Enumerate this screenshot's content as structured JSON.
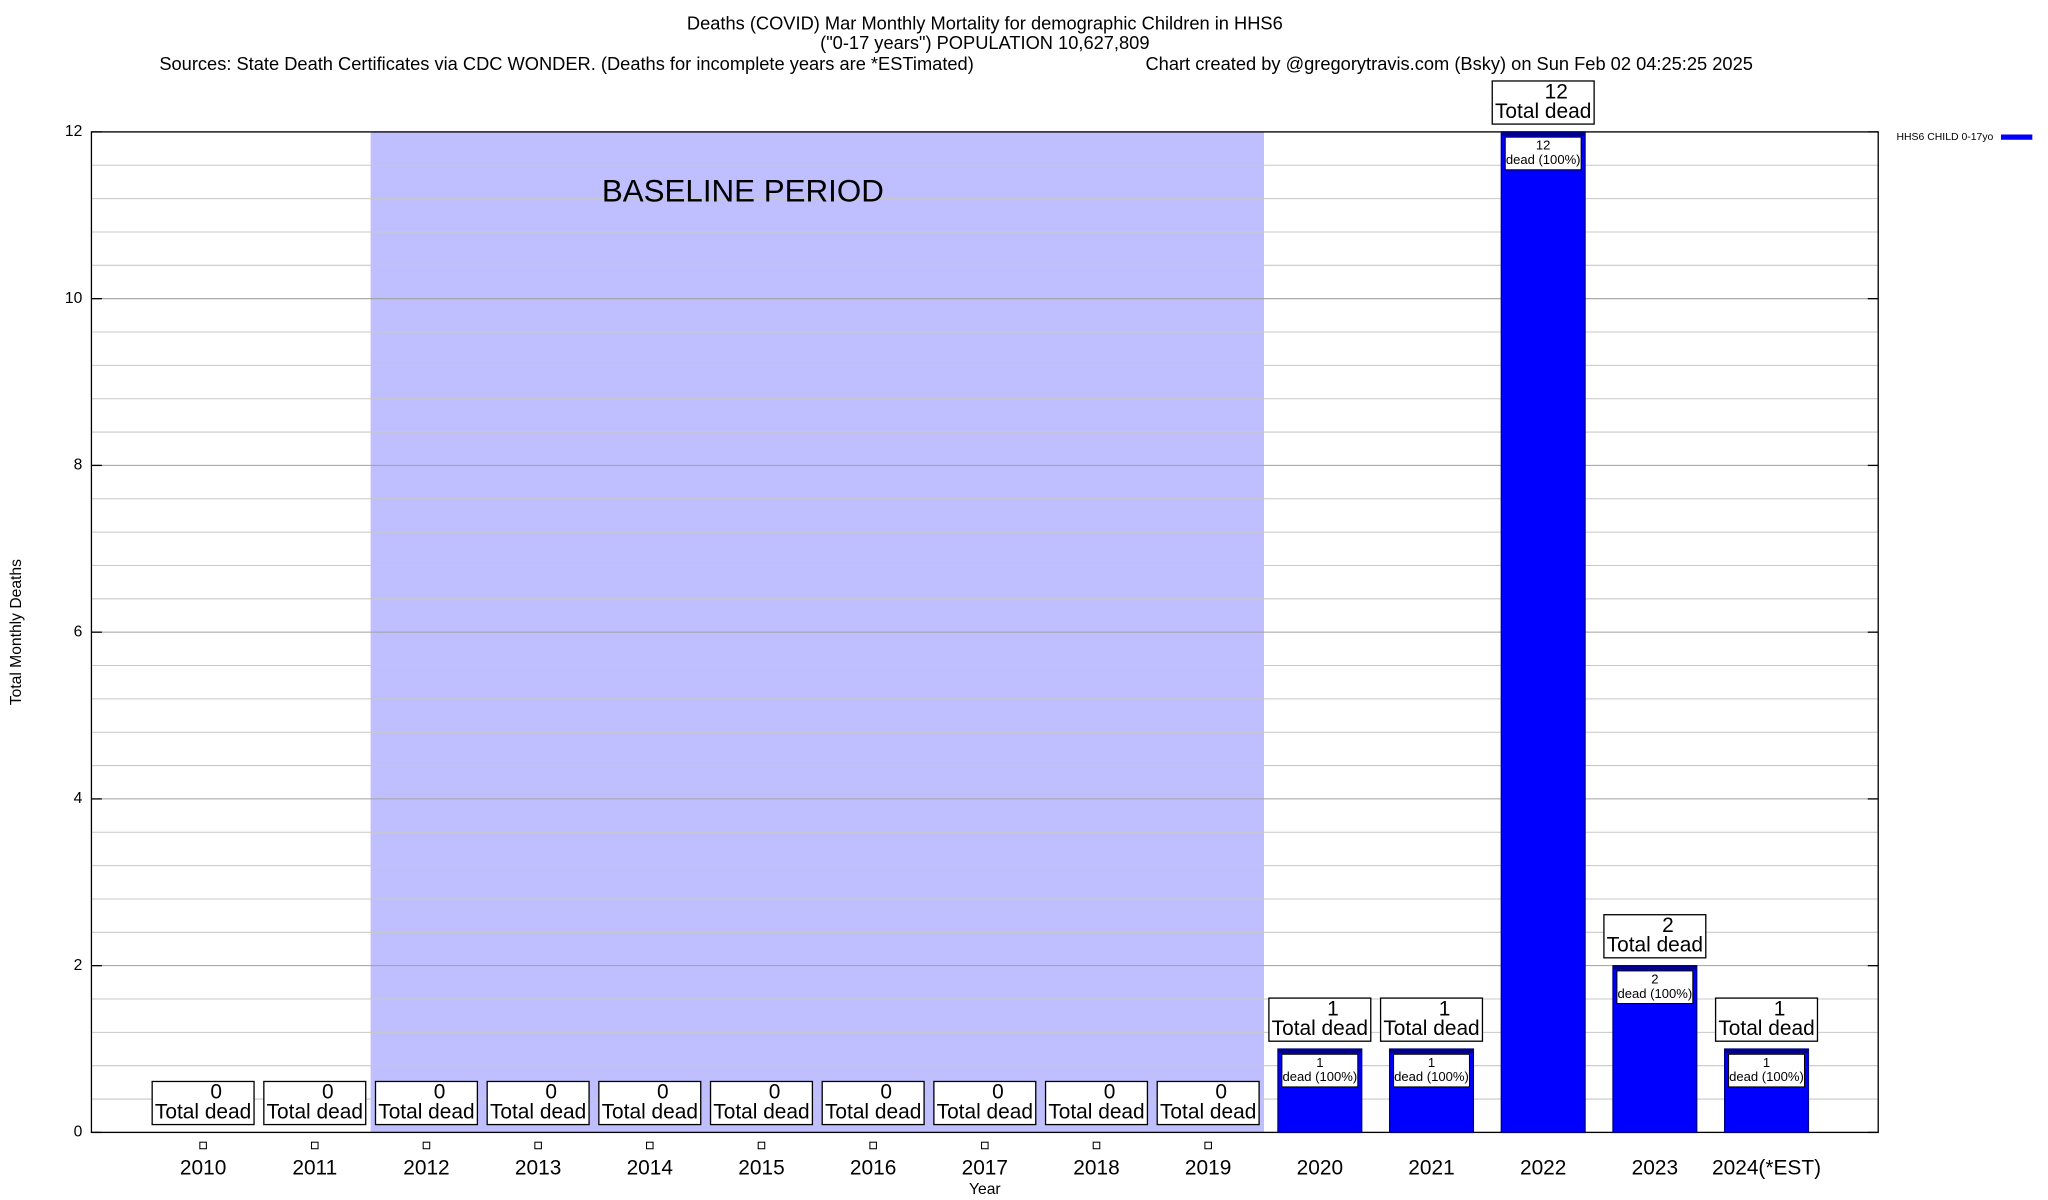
{
  "chart_data": {
    "type": "bar",
    "title": "Deaths (COVID) Mar Monthly Mortality for demographic Children in HHS6",
    "subtitle": "(\"0-17 years\") POPULATION 10,627,809",
    "source": "Sources: State Death Certificates via CDC WONDER. (Deaths for incomplete years are *ESTimated)",
    "credit": "Chart created by @gregorytravis.com (Bsky) on Sun Feb 02 04:25:25 2025",
    "x_label": "Year",
    "y_label": "Total Monthly Deaths",
    "categories": [
      "2010",
      "2011",
      "2012",
      "2013",
      "2014",
      "2015",
      "2016",
      "2017",
      "2018",
      "2019",
      "2020",
      "2021",
      "2022",
      "2023",
      "2024(*EST)"
    ],
    "series": [
      {
        "name": "HHS6 CHILD 0-17yo",
        "color": "#0000ff",
        "values": [
          0,
          0,
          0,
          0,
          0,
          0,
          0,
          0,
          0,
          0,
          1,
          1,
          12,
          2,
          1
        ]
      }
    ],
    "total_label": "Total dead",
    "bar_label": "dead (100%)",
    "baseline": {
      "label": "BASELINE PERIOD",
      "from": "2012",
      "to": "2019",
      "color": "#bfbfff"
    },
    "ylim": [
      0,
      12
    ],
    "yticks": [
      0,
      2,
      4,
      6,
      8,
      10,
      12
    ],
    "y_minor_ticks": [
      0.4,
      0.8,
      1.2,
      1.6,
      2.4,
      2.8,
      3.2,
      3.6,
      4.4,
      4.8,
      5.2,
      5.6,
      6.4,
      6.8,
      7.2,
      7.6,
      8.4,
      8.8,
      9.2,
      9.6,
      10.4,
      10.8,
      11.2,
      11.6
    ],
    "grid": true,
    "legend": "top-right"
  }
}
